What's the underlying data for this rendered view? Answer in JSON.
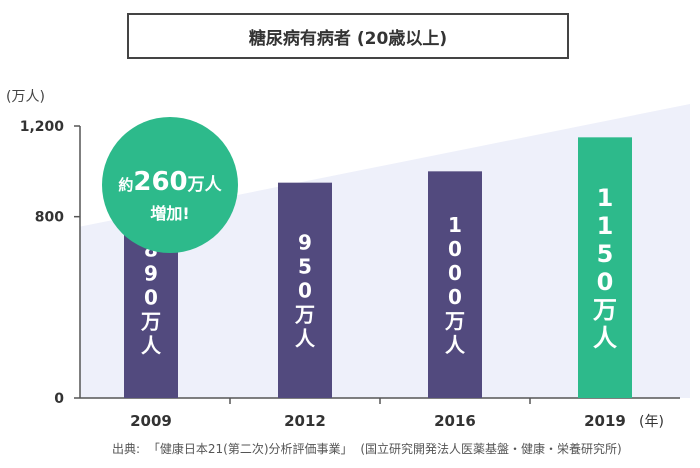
{
  "title": {
    "text": "糖尿病有病者",
    "suffix": "(20歳以上)"
  },
  "unit_label": "(万人)",
  "callout": {
    "line1_prefix": "約",
    "line1_number": "260",
    "line1_suffix": "万人",
    "line2": "増加!",
    "color": "#2dba8b"
  },
  "source": {
    "prefix": "出典:",
    "text": "「健康日本21(第二次)分析評価事業」",
    "org": "(国立研究開発法人医薬基盤・健康・栄養研究所)"
  },
  "chart_data": {
    "type": "bar",
    "categories": [
      "2009",
      "2012",
      "2016",
      "2019"
    ],
    "x_unit_suffix": "(年)",
    "values": [
      890,
      950,
      1000,
      1150
    ],
    "data_labels": [
      "890万人",
      "950万人",
      "1000万人",
      "1150万人"
    ],
    "y_ticks": [
      0,
      800,
      1200
    ],
    "y_tick_labels": [
      "0",
      "800",
      "1,200"
    ],
    "ylim": [
      0,
      1200
    ],
    "bar_colors": [
      "#524a7e",
      "#524a7e",
      "#524a7e",
      "#2dba8b"
    ],
    "trend_area_color": "#eef0fa"
  }
}
